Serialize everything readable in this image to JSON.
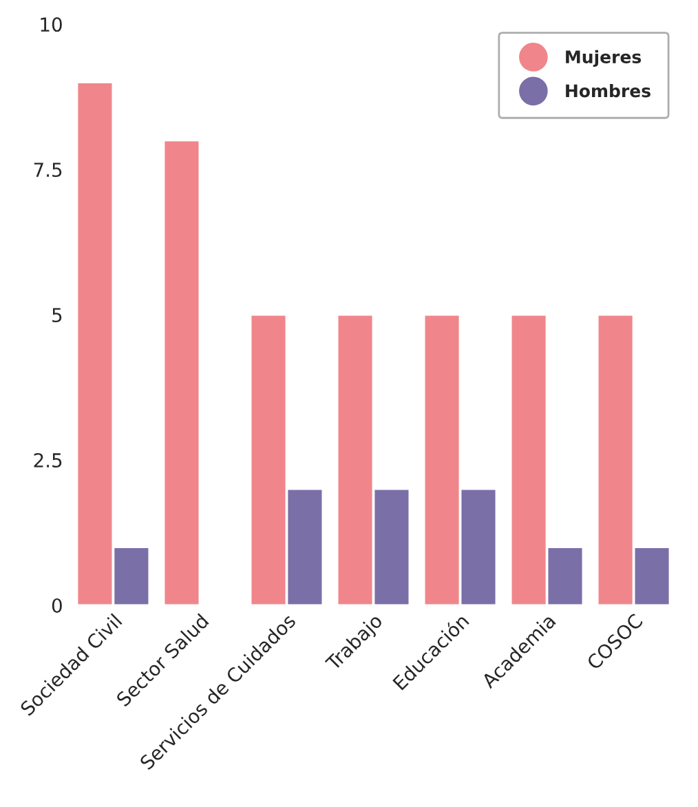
{
  "chart_data": {
    "type": "bar",
    "categories": [
      "Sociedad Civil",
      "Sector Salud",
      "Servicios de Cuidados",
      "Trabajo",
      "Educación",
      "Academia",
      "COSOC"
    ],
    "series": [
      {
        "name": "Mujeres",
        "color": "#f0868b",
        "values": [
          9,
          8,
          5,
          5,
          5,
          5,
          5
        ]
      },
      {
        "name": "Hombres",
        "color": "#7b6fa8",
        "values": [
          1,
          null,
          2,
          2,
          2,
          1,
          1
        ]
      }
    ],
    "ylim": [
      0,
      10
    ],
    "yticks": [
      0,
      2.5,
      5,
      7.5,
      10
    ],
    "grid": false,
    "legend": "top right"
  }
}
